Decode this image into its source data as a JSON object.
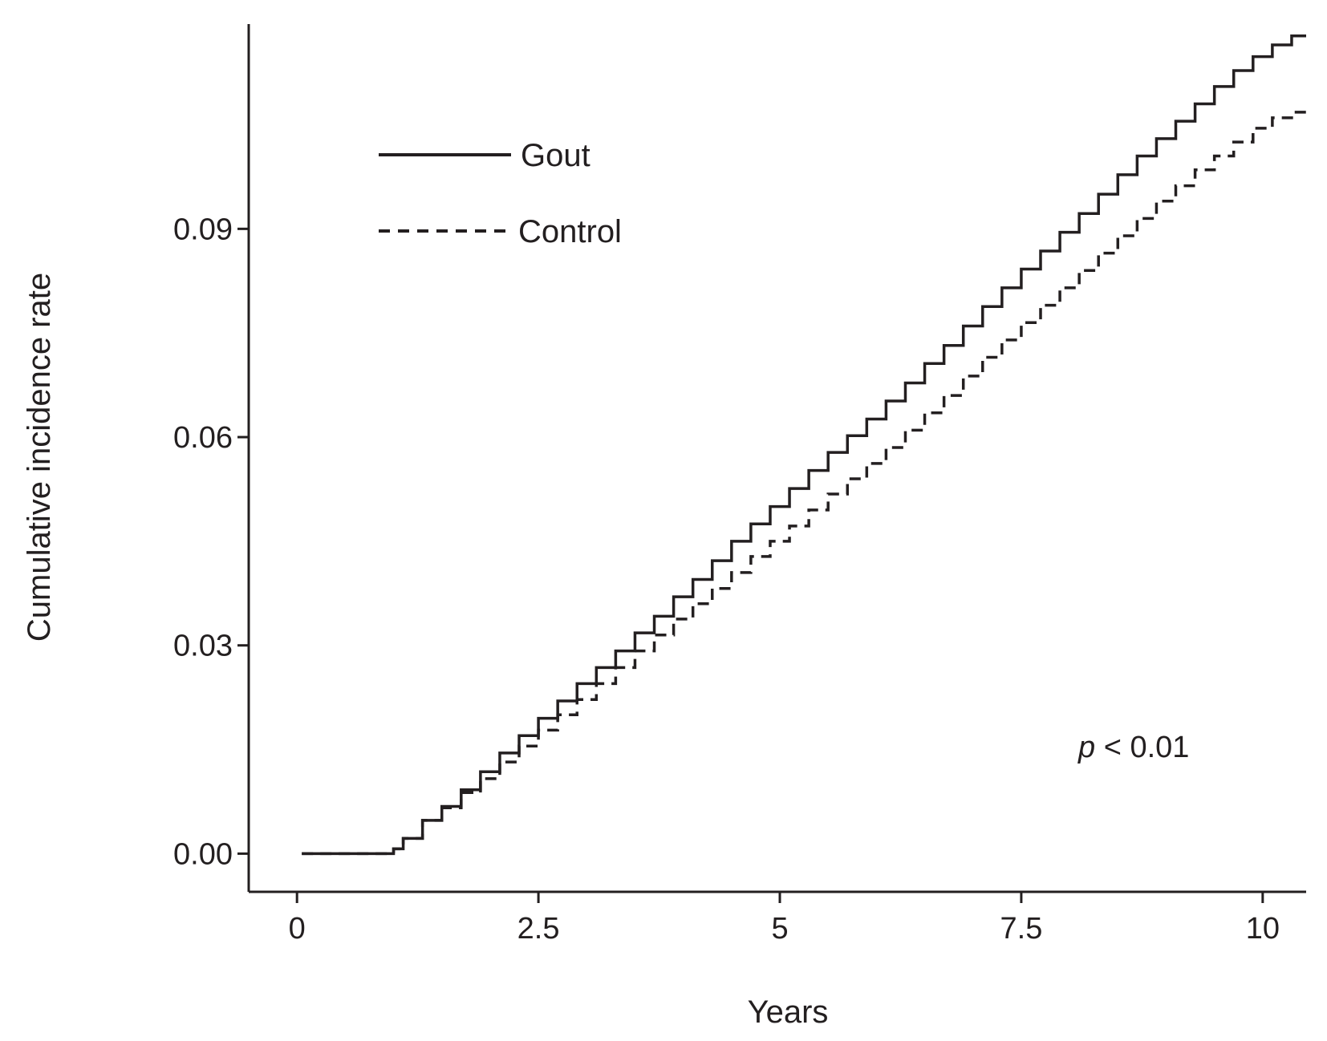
{
  "chart_data": {
    "type": "line",
    "title": "",
    "xlabel": "Years",
    "ylabel": "Cumulative incidence rate",
    "xlim": [
      -0.5,
      10.45
    ],
    "ylim": [
      -0.0055,
      0.1195
    ],
    "x_ticks": [
      0,
      2.5,
      5,
      7.5,
      10
    ],
    "x_tick_labels": [
      "0",
      "2.5",
      "5",
      "7.5",
      "10"
    ],
    "y_ticks": [
      0.0,
      0.03,
      0.06,
      0.09
    ],
    "y_tick_labels": [
      "0.00",
      "0.03",
      "0.06",
      "0.09"
    ],
    "grid": false,
    "legend_position": "top-left",
    "annotation": {
      "italic": "p",
      "rest": " < 0.01"
    },
    "step": true,
    "color": "#231f20",
    "series": [
      {
        "name": "Gout",
        "style": "solid",
        "x": [
          0.05,
          1.0,
          1.1,
          1.3,
          1.5,
          1.7,
          1.9,
          2.1,
          2.3,
          2.5,
          2.7,
          2.9,
          3.1,
          3.3,
          3.5,
          3.7,
          3.9,
          4.1,
          4.3,
          4.5,
          4.7,
          4.9,
          5.1,
          5.3,
          5.5,
          5.7,
          5.9,
          6.1,
          6.3,
          6.5,
          6.7,
          6.9,
          7.1,
          7.3,
          7.5,
          7.7,
          7.9,
          8.1,
          8.3,
          8.5,
          8.7,
          8.9,
          9.1,
          9.3,
          9.5,
          9.7,
          9.9,
          10.1,
          10.3,
          10.45
        ],
        "y": [
          0.0,
          0.0007,
          0.0022,
          0.0048,
          0.0068,
          0.0092,
          0.0118,
          0.0145,
          0.017,
          0.0195,
          0.022,
          0.0245,
          0.0268,
          0.0292,
          0.0318,
          0.0342,
          0.037,
          0.0395,
          0.0422,
          0.045,
          0.0475,
          0.05,
          0.0526,
          0.0552,
          0.0578,
          0.0602,
          0.0626,
          0.0652,
          0.0678,
          0.0706,
          0.0732,
          0.076,
          0.0788,
          0.0815,
          0.0842,
          0.0868,
          0.0895,
          0.0922,
          0.095,
          0.0978,
          0.1005,
          0.103,
          0.1055,
          0.108,
          0.1105,
          0.1128,
          0.1148,
          0.1165,
          0.1178,
          0.1178
        ]
      },
      {
        "name": "Control",
        "style": "dashed",
        "x": [
          0.05,
          1.0,
          1.1,
          1.3,
          1.5,
          1.7,
          1.9,
          2.1,
          2.3,
          2.5,
          2.7,
          2.9,
          3.1,
          3.3,
          3.5,
          3.7,
          3.9,
          4.1,
          4.3,
          4.5,
          4.7,
          4.9,
          5.1,
          5.3,
          5.5,
          5.7,
          5.9,
          6.1,
          6.3,
          6.5,
          6.7,
          6.9,
          7.1,
          7.3,
          7.5,
          7.7,
          7.9,
          8.1,
          8.3,
          8.5,
          8.7,
          8.9,
          9.1,
          9.3,
          9.5,
          9.7,
          9.9,
          10.1,
          10.3,
          10.45
        ],
        "y": [
          0.0,
          0.0007,
          0.0022,
          0.0048,
          0.0066,
          0.0088,
          0.0108,
          0.0132,
          0.0155,
          0.0178,
          0.02,
          0.0222,
          0.0245,
          0.0268,
          0.0292,
          0.0315,
          0.0338,
          0.036,
          0.0382,
          0.0405,
          0.0428,
          0.045,
          0.0472,
          0.0495,
          0.0518,
          0.054,
          0.0562,
          0.0585,
          0.061,
          0.0635,
          0.066,
          0.0688,
          0.0715,
          0.074,
          0.0765,
          0.079,
          0.0815,
          0.084,
          0.0865,
          0.089,
          0.0915,
          0.094,
          0.0962,
          0.0985,
          0.1005,
          0.1025,
          0.1045,
          0.106,
          0.1068,
          0.1068
        ]
      }
    ]
  }
}
